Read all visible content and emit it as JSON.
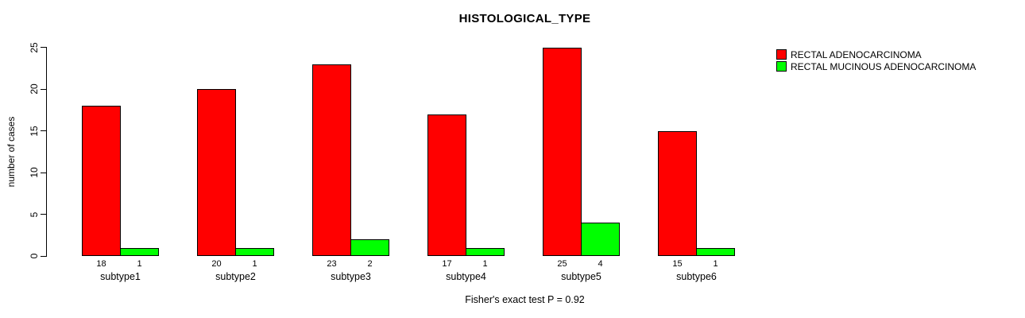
{
  "chart_data": {
    "type": "bar",
    "title": "HISTOLOGICAL_TYPE",
    "xlabel": "",
    "ylabel": "number of cases",
    "categories": [
      "subtype1",
      "subtype2",
      "subtype3",
      "subtype4",
      "subtype5",
      "subtype6"
    ],
    "series": [
      {
        "name": "RECTAL ADENOCARCINOMA",
        "color": "#ff0000",
        "values": [
          18,
          20,
          23,
          17,
          25,
          15
        ]
      },
      {
        "name": "RECTAL MUCINOUS ADENOCARCINOMA",
        "color": "#00ff00",
        "values": [
          1,
          1,
          2,
          1,
          4,
          1
        ]
      }
    ],
    "yticks": [
      0,
      5,
      10,
      15,
      20,
      25
    ],
    "ylim": [
      0,
      25
    ],
    "bar_value_labels_shown": true,
    "grid": false,
    "legend_position": "top-right-inside",
    "annotation": "Fisher's exact test P = 0.92",
    "colors": {
      "background": "#ffffff",
      "axis": "#000000",
      "text": "#000000"
    }
  }
}
